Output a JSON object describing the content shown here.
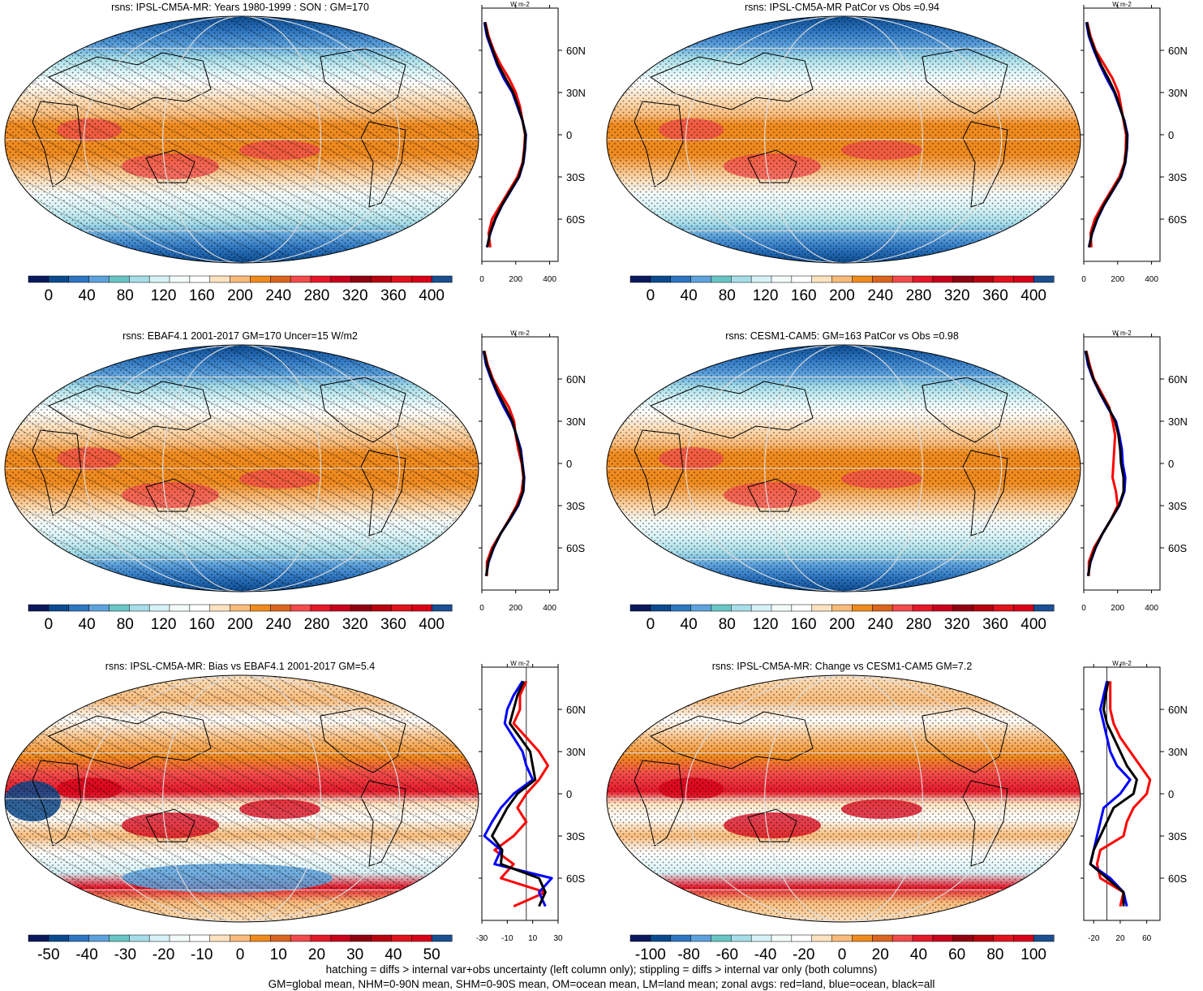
{
  "palettes": {
    "mean": [
      "#0b1a5c",
      "#0b4a8e",
      "#2e75c0",
      "#5da2dc",
      "#68c5c5",
      "#a6dde8",
      "#d6f2f6",
      "#f4fbfb",
      "#ffffff",
      "#fde2c0",
      "#f8bb7a",
      "#ef8a1e",
      "#d9651e",
      "#f24b4b",
      "#e5182a",
      "#c8001c",
      "#8f0010",
      "#b8000e",
      "#e0131c",
      "#d80018",
      "#1b4f91"
    ],
    "diff": [
      "#0b1a5c",
      "#0b4a8e",
      "#2e75c0",
      "#5da2dc",
      "#68c5c5",
      "#a6dde8",
      "#d6f2f6",
      "#f4fbfb",
      "#ffffff",
      "#fde2c0",
      "#f8bb7a",
      "#ef8a1e",
      "#d9651e",
      "#f24b4b",
      "#e5182a",
      "#c8001c",
      "#8f0010",
      "#b8000e",
      "#e0131c",
      "#d80018",
      "#1b4f91"
    ],
    "line_colors": {
      "land": "#ff0000",
      "ocean": "#0000ff",
      "all": "#000000"
    }
  },
  "chart_data": [
    {
      "type": "heatmap",
      "title": "rsns: IPSL-CM5A-MR: Years 1980-1999 : SON : GM=170",
      "style": "mean",
      "hatching": true,
      "stippling": true,
      "colorbar_labels": [
        "0",
        "40",
        "80",
        "120",
        "160",
        "200",
        "240",
        "280",
        "320",
        "360",
        "400"
      ],
      "zonal": {
        "unit_label": "W m-2",
        "xlim": [
          0,
          450
        ],
        "xticks": [
          0,
          200,
          400
        ],
        "xtick_labels": [
          "0",
          "200",
          "400"
        ],
        "lat_ticks": [
          60,
          30,
          0,
          -30,
          -60
        ],
        "lat_labels": [
          "60N",
          "30N",
          "0",
          "30S",
          "60S"
        ],
        "lat": [
          80,
          70,
          60,
          50,
          40,
          30,
          20,
          10,
          0,
          -10,
          -20,
          -30,
          -40,
          -50,
          -60,
          -70,
          -80
        ],
        "ocean": [
          15,
          30,
          60,
          90,
          130,
          180,
          210,
          240,
          260,
          255,
          245,
          220,
          170,
          120,
          80,
          50,
          30
        ],
        "land": [
          20,
          40,
          70,
          110,
          160,
          200,
          225,
          240,
          255,
          250,
          240,
          210,
          160,
          110,
          60,
          40,
          50
        ],
        "all": [
          18,
          35,
          65,
          95,
          140,
          185,
          215,
          240,
          258,
          253,
          243,
          218,
          168,
          118,
          78,
          48,
          32
        ]
      }
    },
    {
      "type": "heatmap",
      "title": "rsns: IPSL-CM5A-MR PatCor vs Obs =0.94",
      "style": "mean",
      "hatching": false,
      "stippling": true,
      "colorbar_labels": [
        "0",
        "40",
        "80",
        "120",
        "160",
        "200",
        "240",
        "280",
        "320",
        "360",
        "400"
      ],
      "zonal": {
        "unit_label": "W m-2",
        "xlim": [
          0,
          450
        ],
        "xticks": [
          0,
          200,
          400
        ],
        "xtick_labels": [
          "0",
          "200",
          "400"
        ],
        "lat_ticks": [
          60,
          30,
          0,
          -30,
          -60
        ],
        "lat_labels": [
          "60N",
          "30N",
          "0",
          "30S",
          "60S"
        ],
        "lat": [
          80,
          70,
          60,
          50,
          40,
          30,
          20,
          10,
          0,
          -10,
          -20,
          -30,
          -40,
          -50,
          -60,
          -70,
          -80
        ],
        "ocean": [
          15,
          30,
          60,
          95,
          135,
          180,
          210,
          240,
          258,
          255,
          245,
          220,
          170,
          120,
          80,
          50,
          30
        ],
        "land": [
          20,
          40,
          70,
          120,
          170,
          205,
          220,
          235,
          250,
          248,
          240,
          210,
          160,
          110,
          65,
          40,
          45
        ],
        "all": [
          18,
          35,
          65,
          100,
          145,
          185,
          213,
          238,
          255,
          253,
          243,
          218,
          168,
          118,
          78,
          48,
          32
        ]
      }
    },
    {
      "type": "heatmap",
      "title": "rsns: EBAF4.1 2001-2017 GM=170 Uncer=15 W/m2",
      "style": "mean",
      "hatching": true,
      "stippling": true,
      "colorbar_labels": [
        "0",
        "40",
        "80",
        "120",
        "160",
        "200",
        "240",
        "280",
        "320",
        "360",
        "400"
      ],
      "zonal": {
        "unit_label": "W m-2",
        "xlim": [
          0,
          450
        ],
        "xticks": [
          0,
          200,
          400
        ],
        "xtick_labels": [
          "0",
          "200",
          "400"
        ],
        "lat_ticks": [
          60,
          30,
          0,
          -30,
          -60
        ],
        "lat_labels": [
          "60N",
          "30N",
          "0",
          "30S",
          "60S"
        ],
        "lat": [
          80,
          70,
          60,
          50,
          40,
          30,
          20,
          10,
          0,
          -10,
          -20,
          -30,
          -40,
          -50,
          -60,
          -70,
          -80
        ],
        "ocean": [
          10,
          25,
          55,
          90,
          130,
          175,
          205,
          230,
          240,
          250,
          245,
          215,
          165,
          110,
          70,
          40,
          25
        ],
        "land": [
          15,
          35,
          65,
          110,
          160,
          190,
          200,
          215,
          235,
          245,
          235,
          205,
          160,
          110,
          60,
          30,
          30
        ],
        "all": [
          12,
          30,
          60,
          95,
          140,
          180,
          203,
          225,
          238,
          248,
          243,
          212,
          163,
          110,
          68,
          38,
          26
        ]
      }
    },
    {
      "type": "heatmap",
      "title": "rsns: CESM1-CAM5: GM=163 PatCor vs Obs =0.98",
      "style": "mean",
      "hatching": false,
      "stippling": true,
      "colorbar_labels": [
        "0",
        "40",
        "80",
        "120",
        "160",
        "200",
        "240",
        "280",
        "320",
        "360",
        "400"
      ],
      "zonal": {
        "unit_label": "W m-2",
        "xlim": [
          0,
          450
        ],
        "xticks": [
          0,
          200,
          400
        ],
        "xtick_labels": [
          "0",
          "200",
          "400"
        ],
        "lat_ticks": [
          60,
          30,
          0,
          -30,
          -60
        ],
        "lat_labels": [
          "60N",
          "30N",
          "0",
          "30S",
          "60S"
        ],
        "lat": [
          80,
          70,
          60,
          50,
          40,
          30,
          20,
          10,
          0,
          -10,
          -20,
          -30,
          -40,
          -50,
          -60,
          -70,
          -80
        ],
        "ocean": [
          10,
          25,
          55,
          95,
          140,
          190,
          210,
          225,
          230,
          245,
          240,
          210,
          160,
          110,
          70,
          40,
          25
        ],
        "land": [
          15,
          35,
          60,
          105,
          150,
          170,
          185,
          180,
          175,
          170,
          190,
          200,
          160,
          110,
          60,
          30,
          30
        ],
        "all": [
          12,
          30,
          57,
          98,
          145,
          185,
          205,
          215,
          220,
          235,
          235,
          208,
          160,
          110,
          68,
          38,
          26
        ]
      }
    },
    {
      "type": "heatmap",
      "title": "rsns: IPSL-CM5A-MR: Bias vs EBAF4.1 2001-2017  GM=5.4",
      "style": "diff",
      "hatching": true,
      "stippling": true,
      "colorbar_labels": [
        "-50",
        "-40",
        "-30",
        "-20",
        "-10",
        "0",
        "10",
        "20",
        "30",
        "40",
        "50"
      ],
      "zonal": {
        "unit_label": "W m-2",
        "xlim": [
          -30,
          30
        ],
        "xticks": [
          -30,
          -10,
          10,
          30
        ],
        "xtick_labels": [
          "-30",
          "-10",
          "10",
          "30"
        ],
        "ref_x": 5,
        "lat_ticks": [
          60,
          30,
          0,
          -30,
          -60
        ],
        "lat_labels": [
          "60N",
          "30N",
          "0",
          "30S",
          "60S"
        ],
        "lat": [
          80,
          70,
          60,
          50,
          40,
          30,
          20,
          10,
          0,
          -10,
          -20,
          -30,
          -40,
          -50,
          -60,
          -70,
          -80
        ],
        "ocean": [
          2,
          -5,
          -10,
          -12,
          -5,
          2,
          5,
          10,
          -5,
          -15,
          -22,
          -28,
          -15,
          -20,
          25,
          15,
          20
        ],
        "land": [
          5,
          0,
          0,
          -5,
          5,
          15,
          22,
          15,
          5,
          -2,
          5,
          -5,
          -20,
          -5,
          -15,
          20,
          -5
        ],
        "all": [
          3,
          -2,
          -5,
          -8,
          0,
          8,
          10,
          12,
          -2,
          -10,
          -16,
          -22,
          -14,
          -15,
          15,
          20,
          15
        ]
      }
    },
    {
      "type": "heatmap",
      "title": "rsns: IPSL-CM5A-MR: Change vs CESM1-CAM5 GM=7.2",
      "style": "diff",
      "hatching": false,
      "stippling": true,
      "colorbar_labels": [
        "-100",
        "-80",
        "-60",
        "-40",
        "-20",
        "0",
        "20",
        "40",
        "60",
        "80",
        "100"
      ],
      "zonal": {
        "unit_label": "W m-2",
        "xlim": [
          -35,
          80
        ],
        "xticks": [
          -20,
          20,
          60
        ],
        "xtick_labels": [
          "-20",
          "20",
          "60"
        ],
        "ref_x": 0,
        "lat_ticks": [
          60,
          30,
          0,
          -30,
          -60
        ],
        "lat_labels": [
          "60N",
          "30N",
          "0",
          "30S",
          "60S"
        ],
        "lat": [
          80,
          70,
          60,
          50,
          40,
          30,
          20,
          10,
          0,
          -10,
          -20,
          -30,
          -40,
          -50,
          -60,
          -70,
          -80
        ],
        "ocean": [
          0,
          -5,
          -10,
          -5,
          0,
          5,
          15,
          35,
          20,
          -5,
          -10,
          -15,
          -20,
          -25,
          5,
          25,
          30
        ],
        "land": [
          5,
          5,
          5,
          10,
          20,
          35,
          50,
          65,
          60,
          40,
          30,
          25,
          -10,
          -15,
          -10,
          25,
          20
        ],
        "all": [
          2,
          -2,
          -5,
          0,
          10,
          20,
          30,
          45,
          40,
          10,
          0,
          -10,
          -20,
          -25,
          0,
          25,
          25
        ]
      }
    }
  ],
  "footer": {
    "line1": "hatching = diffs > internal var+obs uncertainty (left column only); stippling = diffs > internal var only (both columns)",
    "line2": "GM=global mean, NHM=0-90N mean, SHM=0-90S mean, OM=ocean mean, LM=land mean; zonal avgs: red=land, blue=ocean, black=all"
  }
}
